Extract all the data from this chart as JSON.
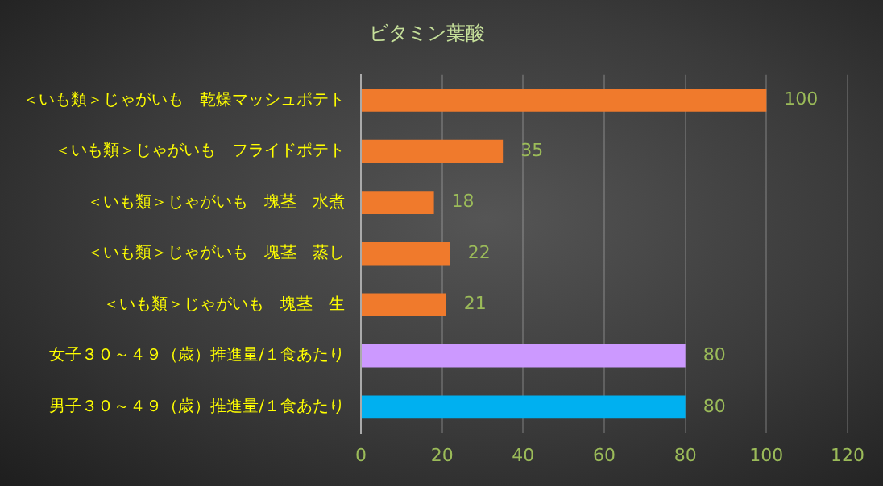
{
  "chart_data": {
    "type": "bar",
    "orientation": "horizontal",
    "title": "ビタミン葉酸",
    "categories": [
      "＜いも類＞じゃがいも　乾燥マッシュポテト",
      "＜いも類＞じゃがいも　フライドポテト",
      "＜いも類＞じゃがいも　塊茎　水煮",
      "＜いも類＞じゃがいも　塊茎　蒸し",
      "＜いも類＞じゃがいも　塊茎　生",
      "女子３０～４９（歳）推進量/１食あたり",
      "男子３０～４９（歳）推進量/１食あたり"
    ],
    "values": [
      100,
      35,
      18,
      22,
      21,
      80,
      80
    ],
    "colors": [
      "#f07a2c",
      "#f07a2c",
      "#f07a2c",
      "#f07a2c",
      "#f07a2c",
      "#cc99ff",
      "#00b0f0"
    ],
    "xlim": [
      0,
      120
    ],
    "xticks": [
      0,
      20,
      40,
      60,
      80,
      100,
      120
    ],
    "grid": "x",
    "data_labels": true,
    "legend": false
  }
}
